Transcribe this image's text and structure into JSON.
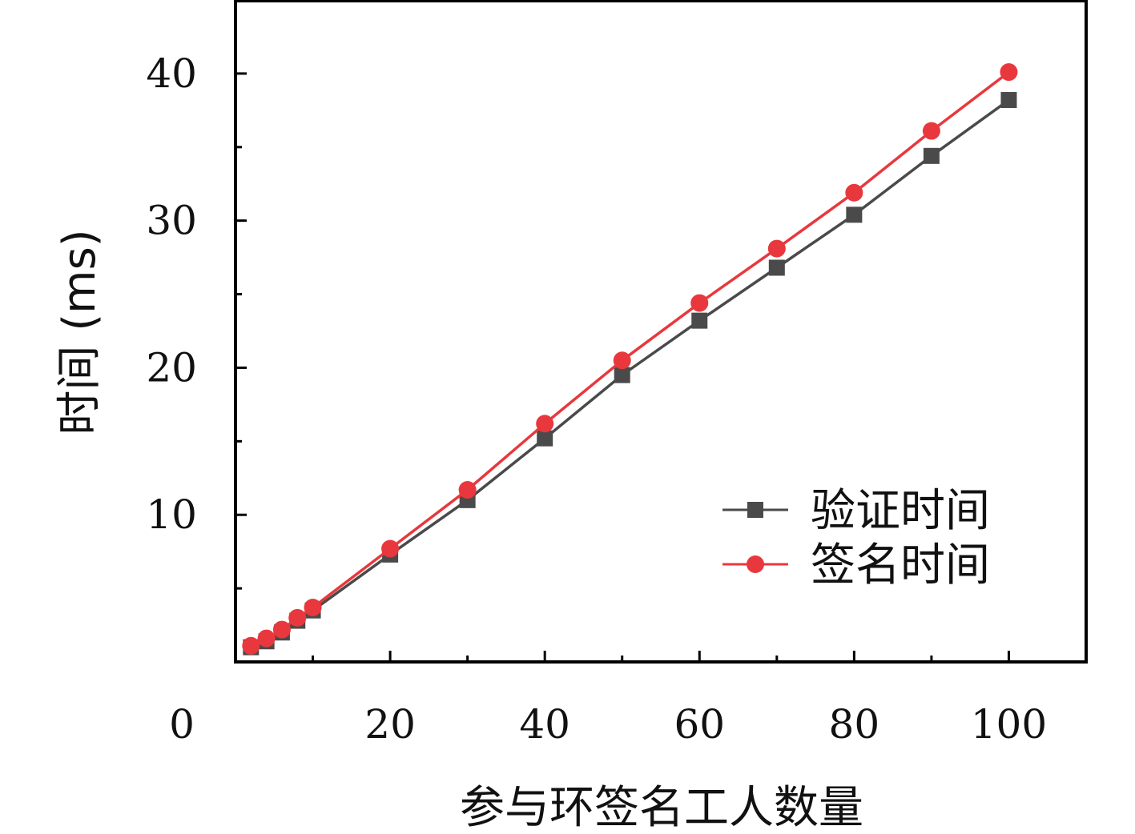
{
  "chart_data": {
    "type": "line",
    "xlabel": "参与环签名工人数量",
    "ylabel": "时间 (ms)",
    "xlim": [
      0,
      110
    ],
    "ylim": [
      0,
      45
    ],
    "x_ticks": [
      0,
      20,
      40,
      60,
      80,
      100
    ],
    "y_ticks": [
      10,
      20,
      30,
      40
    ],
    "grid": false,
    "legend_position": "lower-right",
    "x": [
      2,
      4,
      6,
      8,
      10,
      20,
      30,
      40,
      50,
      60,
      70,
      80,
      90,
      100
    ],
    "series": [
      {
        "name": "验证时间",
        "marker": "square",
        "color": "#4a4a4a",
        "values": [
          1.0,
          1.4,
          2.0,
          2.8,
          3.5,
          7.3,
          11.0,
          15.2,
          19.5,
          23.2,
          26.8,
          30.4,
          34.4,
          38.2
        ]
      },
      {
        "name": "签名时间",
        "marker": "circle",
        "color": "#e8383d",
        "values": [
          1.1,
          1.6,
          2.2,
          3.0,
          3.7,
          7.7,
          11.7,
          16.2,
          20.5,
          24.4,
          28.1,
          31.9,
          36.1,
          40.1
        ]
      }
    ]
  }
}
